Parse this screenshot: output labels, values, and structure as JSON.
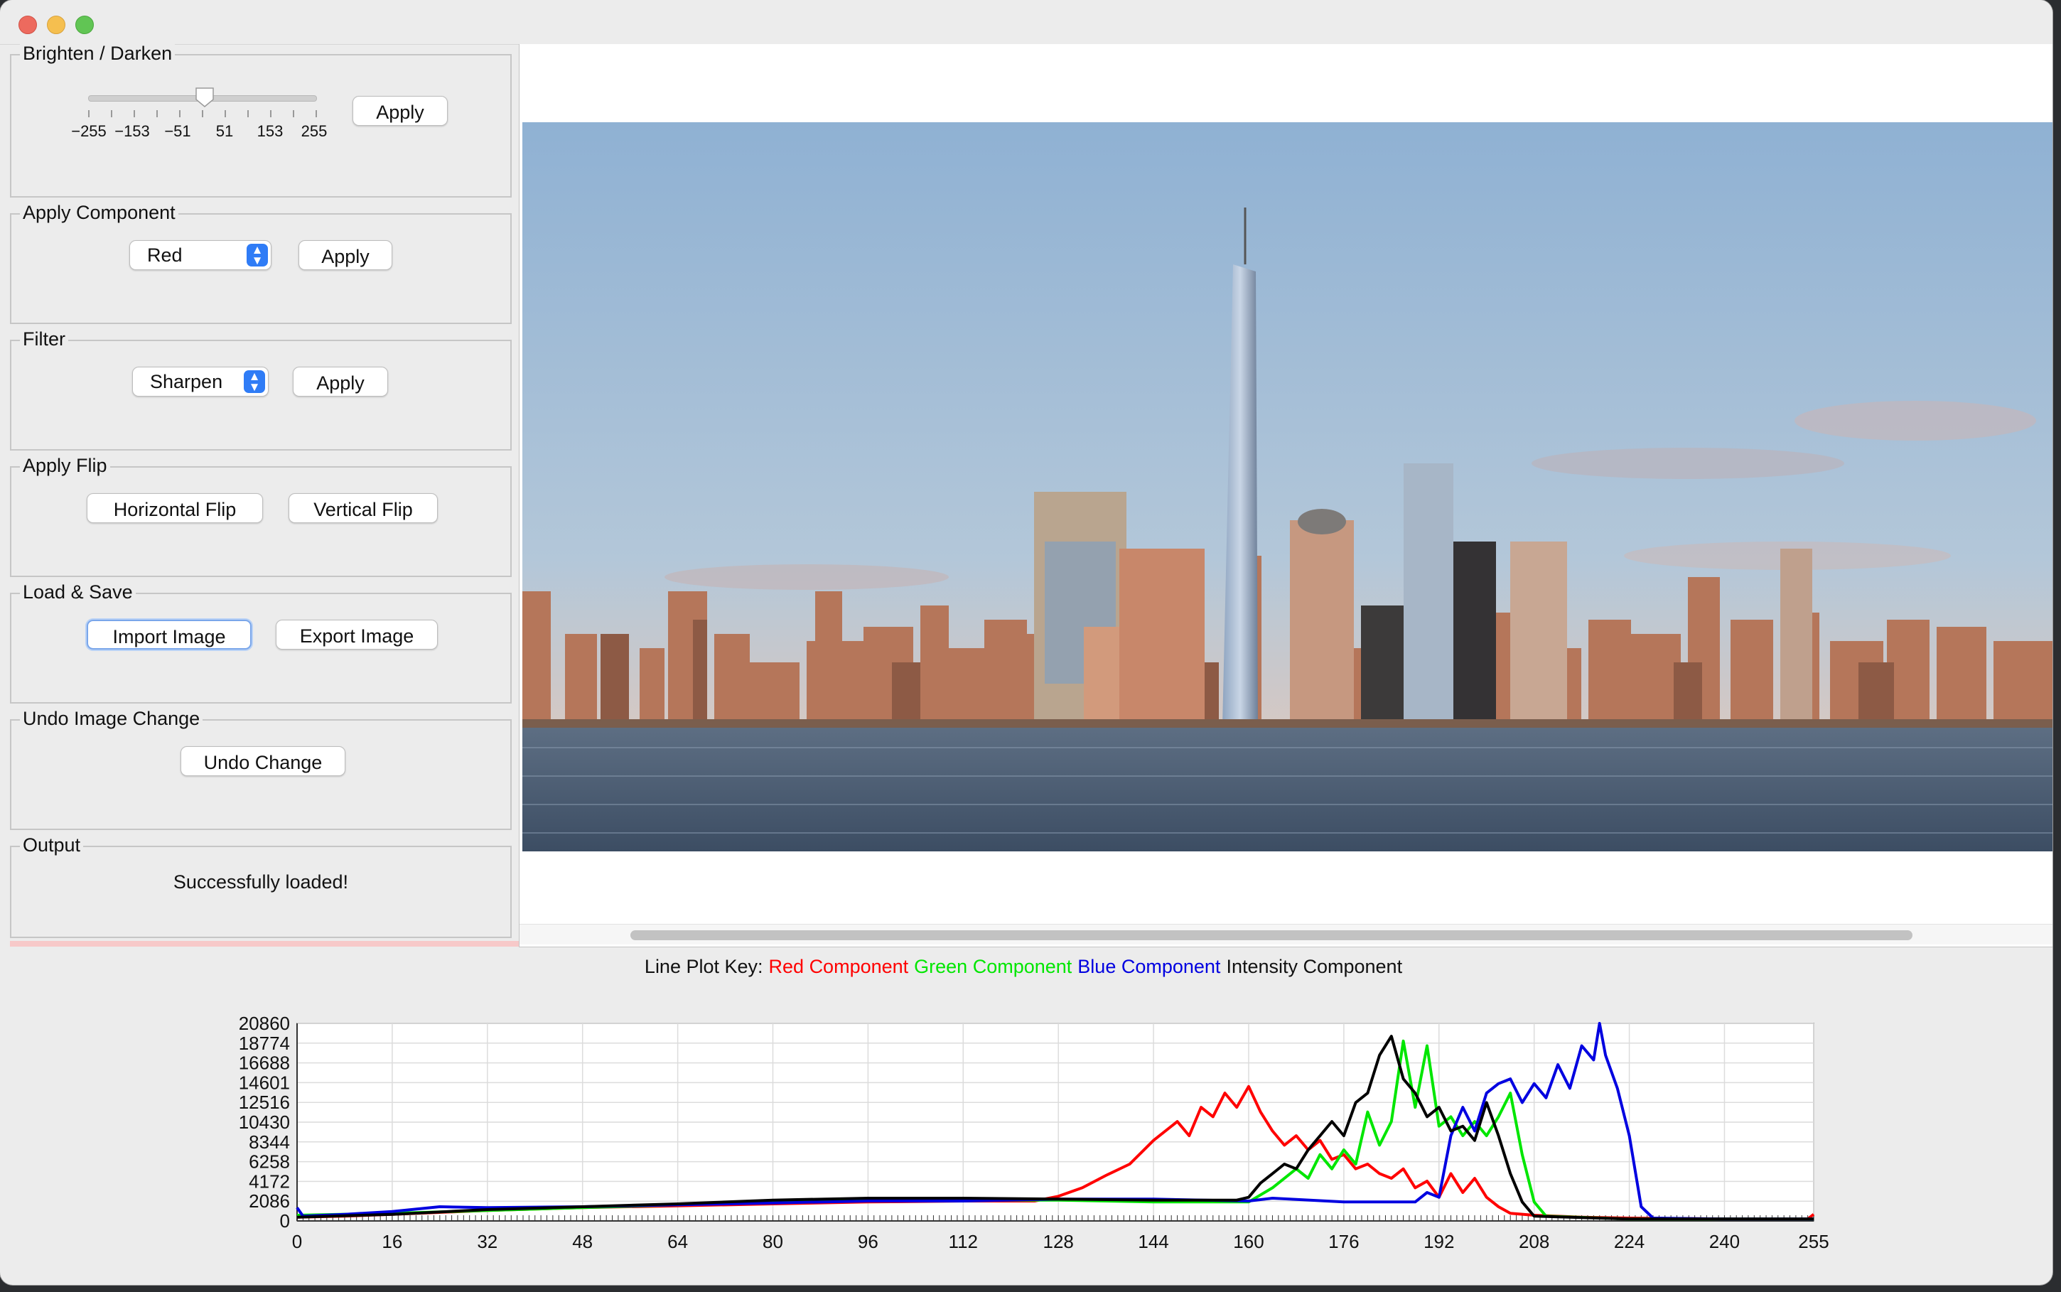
{
  "window": {
    "controls": [
      "close",
      "minimize",
      "maximize"
    ]
  },
  "brighten": {
    "title": "Brighten / Darken",
    "slider_ticks": [
      "−255",
      "−153",
      "−51",
      "51",
      "153",
      "255"
    ],
    "slider_value_fraction": 0.4,
    "apply_label": "Apply"
  },
  "component": {
    "title": "Apply Component",
    "selected": "Red",
    "apply_label": "Apply"
  },
  "filter": {
    "title": "Filter",
    "selected": "Sharpen",
    "apply_label": "Apply"
  },
  "flip": {
    "title": "Apply Flip",
    "horizontal_label": "Horizontal Flip",
    "vertical_label": "Vertical Flip"
  },
  "loadsave": {
    "title": "Load & Save",
    "import_label": "Import Image",
    "export_label": "Export Image"
  },
  "undo": {
    "title": "Undo Image Change",
    "undo_label": "Undo Change"
  },
  "output": {
    "title": "Output",
    "message": "Successfully loaded!"
  },
  "plot_key": {
    "prefix": "Line Plot Key:",
    "red": "Red Component",
    "green": "Green Component",
    "blue": "Blue Component",
    "intensity": "Intensity Component"
  },
  "colors": {
    "red": "#ff0000",
    "green": "#00e600",
    "blue": "#0000e0",
    "intensity": "#000000",
    "accent": "#2f7cf6"
  },
  "chart_data": {
    "type": "line",
    "title": "",
    "xlabel": "",
    "ylabel": "",
    "xlim": [
      0,
      255
    ],
    "ylim": [
      0,
      20860
    ],
    "x_ticks": [
      "0",
      "16",
      "32",
      "48",
      "64",
      "80",
      "96",
      "112",
      "128",
      "144",
      "160",
      "176",
      "192",
      "208",
      "224",
      "240",
      "255"
    ],
    "y_ticks": [
      "0",
      "2086",
      "4172",
      "6258",
      "8344",
      "10430",
      "12516",
      "14601",
      "16688",
      "18774",
      "20860"
    ],
    "grid": true,
    "series": [
      {
        "name": "Red Component",
        "color": "#ff0000",
        "points": [
          [
            0,
            400
          ],
          [
            8,
            500
          ],
          [
            16,
            700
          ],
          [
            32,
            1100
          ],
          [
            48,
            1400
          ],
          [
            64,
            1600
          ],
          [
            80,
            1800
          ],
          [
            96,
            2000
          ],
          [
            112,
            2100
          ],
          [
            124,
            2100
          ],
          [
            128,
            2600
          ],
          [
            132,
            3500
          ],
          [
            136,
            4800
          ],
          [
            140,
            6000
          ],
          [
            144,
            8500
          ],
          [
            148,
            10500
          ],
          [
            150,
            9000
          ],
          [
            152,
            12000
          ],
          [
            154,
            11000
          ],
          [
            156,
            13500
          ],
          [
            158,
            12000
          ],
          [
            160,
            14200
          ],
          [
            162,
            11500
          ],
          [
            164,
            9500
          ],
          [
            166,
            8000
          ],
          [
            168,
            9000
          ],
          [
            170,
            7500
          ],
          [
            172,
            8500
          ],
          [
            174,
            6500
          ],
          [
            176,
            7000
          ],
          [
            178,
            5500
          ],
          [
            180,
            6000
          ],
          [
            182,
            5000
          ],
          [
            184,
            4500
          ],
          [
            186,
            5500
          ],
          [
            188,
            3500
          ],
          [
            190,
            4200
          ],
          [
            192,
            2500
          ],
          [
            194,
            5000
          ],
          [
            196,
            3000
          ],
          [
            198,
            4500
          ],
          [
            200,
            2500
          ],
          [
            202,
            1500
          ],
          [
            204,
            800
          ],
          [
            208,
            600
          ],
          [
            216,
            400
          ],
          [
            224,
            300
          ],
          [
            240,
            200
          ],
          [
            254,
            200
          ],
          [
            255,
            700
          ]
        ]
      },
      {
        "name": "Green Component",
        "color": "#00e600",
        "points": [
          [
            0,
            600
          ],
          [
            16,
            800
          ],
          [
            32,
            1100
          ],
          [
            48,
            1400
          ],
          [
            64,
            1700
          ],
          [
            80,
            2000
          ],
          [
            96,
            2200
          ],
          [
            112,
            2200
          ],
          [
            128,
            2200
          ],
          [
            144,
            2000
          ],
          [
            160,
            2000
          ],
          [
            164,
            3500
          ],
          [
            168,
            5500
          ],
          [
            170,
            4500
          ],
          [
            172,
            7000
          ],
          [
            174,
            5500
          ],
          [
            176,
            7500
          ],
          [
            178,
            6000
          ],
          [
            180,
            11500
          ],
          [
            182,
            8000
          ],
          [
            184,
            10500
          ],
          [
            186,
            19000
          ],
          [
            188,
            12000
          ],
          [
            190,
            18500
          ],
          [
            192,
            10000
          ],
          [
            194,
            11000
          ],
          [
            196,
            9000
          ],
          [
            198,
            10500
          ],
          [
            200,
            9000
          ],
          [
            202,
            11000
          ],
          [
            204,
            13500
          ],
          [
            206,
            7000
          ],
          [
            208,
            2000
          ],
          [
            210,
            500
          ],
          [
            224,
            200
          ],
          [
            255,
            200
          ]
        ]
      },
      {
        "name": "Blue Component",
        "color": "#0000e0",
        "points": [
          [
            0,
            1400
          ],
          [
            1,
            500
          ],
          [
            8,
            700
          ],
          [
            16,
            1000
          ],
          [
            24,
            1500
          ],
          [
            32,
            1400
          ],
          [
            48,
            1500
          ],
          [
            64,
            1700
          ],
          [
            80,
            1900
          ],
          [
            96,
            2100
          ],
          [
            112,
            2100
          ],
          [
            128,
            2300
          ],
          [
            144,
            2300
          ],
          [
            160,
            2100
          ],
          [
            164,
            2400
          ],
          [
            176,
            2000
          ],
          [
            188,
            2000
          ],
          [
            190,
            3000
          ],
          [
            192,
            2500
          ],
          [
            194,
            9000
          ],
          [
            196,
            12000
          ],
          [
            198,
            9500
          ],
          [
            200,
            13500
          ],
          [
            202,
            14500
          ],
          [
            204,
            15000
          ],
          [
            206,
            12500
          ],
          [
            208,
            14500
          ],
          [
            210,
            13000
          ],
          [
            212,
            16500
          ],
          [
            214,
            14000
          ],
          [
            216,
            18500
          ],
          [
            218,
            17000
          ],
          [
            219,
            20860
          ],
          [
            220,
            17500
          ],
          [
            222,
            14000
          ],
          [
            224,
            9000
          ],
          [
            226,
            1500
          ],
          [
            228,
            300
          ],
          [
            240,
            200
          ],
          [
            255,
            200
          ]
        ]
      },
      {
        "name": "Intensity Component",
        "color": "#000000",
        "points": [
          [
            0,
            400
          ],
          [
            16,
            700
          ],
          [
            32,
            1200
          ],
          [
            48,
            1500
          ],
          [
            64,
            1800
          ],
          [
            80,
            2200
          ],
          [
            96,
            2400
          ],
          [
            112,
            2400
          ],
          [
            128,
            2300
          ],
          [
            144,
            2200
          ],
          [
            158,
            2200
          ],
          [
            160,
            2500
          ],
          [
            162,
            4000
          ],
          [
            164,
            5000
          ],
          [
            166,
            6000
          ],
          [
            168,
            5500
          ],
          [
            170,
            7500
          ],
          [
            172,
            9000
          ],
          [
            174,
            10500
          ],
          [
            176,
            9000
          ],
          [
            178,
            12500
          ],
          [
            180,
            13500
          ],
          [
            182,
            17500
          ],
          [
            184,
            19500
          ],
          [
            186,
            15000
          ],
          [
            188,
            13500
          ],
          [
            190,
            11000
          ],
          [
            192,
            12000
          ],
          [
            194,
            9500
          ],
          [
            196,
            10000
          ],
          [
            198,
            8500
          ],
          [
            200,
            12500
          ],
          [
            202,
            9000
          ],
          [
            204,
            5000
          ],
          [
            206,
            2000
          ],
          [
            208,
            500
          ],
          [
            224,
            200
          ],
          [
            255,
            200
          ]
        ]
      }
    ]
  }
}
